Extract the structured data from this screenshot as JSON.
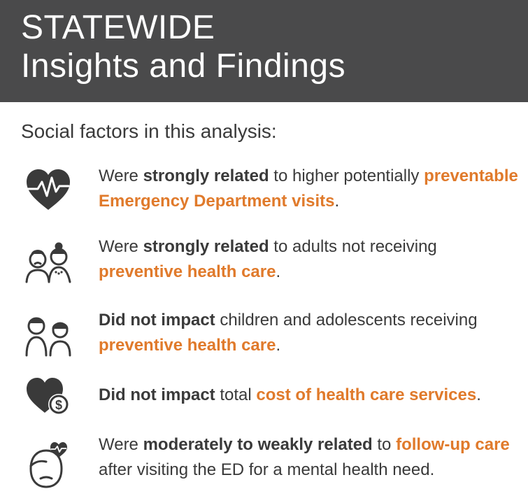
{
  "header": {
    "title": "STATEWIDE",
    "subtitle": "Insights and Findings"
  },
  "intro": "Social factors in this analysis:",
  "colors": {
    "header_bg": "#4a4a4b",
    "accent": "#e07a2b",
    "text": "#3a3a3a"
  },
  "items": [
    {
      "icon": "heartbeat-icon",
      "pre": "Were ",
      "bold": "strongly related",
      "mid": " to higher potentially ",
      "highlight": "preventable Emergency Department visits",
      "post": "."
    },
    {
      "icon": "older-couple-icon",
      "pre": "Were ",
      "bold": "strongly related",
      "mid": " to adults not receiving ",
      "highlight": "preventive health care",
      "post": "."
    },
    {
      "icon": "children-icon",
      "pre": "",
      "bold": "Did not impact",
      "mid": " children and adolescents receiving ",
      "highlight": "preventive health care",
      "post": "."
    },
    {
      "icon": "heart-dollar-icon",
      "pre": "",
      "bold": "Did not impact",
      "mid": " total ",
      "highlight": "cost of health care services",
      "post": "."
    },
    {
      "icon": "mental-health-icon",
      "pre": "Were ",
      "bold": "moderately to weakly related",
      "mid": " to ",
      "highlight": "follow-up care",
      "post": " after visiting the ED for a mental health need."
    }
  ]
}
